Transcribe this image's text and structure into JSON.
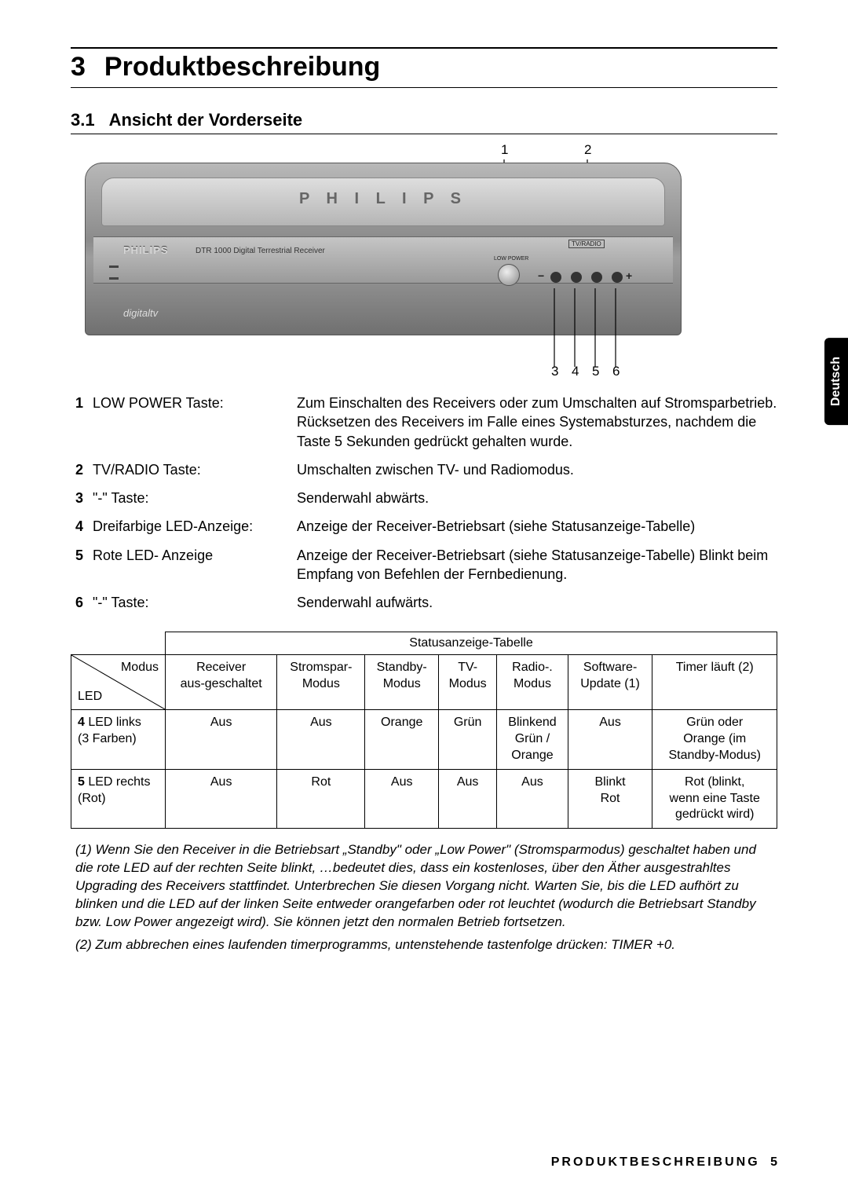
{
  "chapter": {
    "num": "3",
    "title": "Produktbeschreibung"
  },
  "section": {
    "num": "3.1",
    "title": "Ansicht der Vorderseite"
  },
  "side_tab": "Deutsch",
  "figure": {
    "brand_top": "P H I L I P S",
    "brand_small": "PHILIPS",
    "model_text": "DTR 1000  Digital Terrestrial Receiver",
    "tvradio": "TV/RADIO",
    "power_label": "LOW POWER",
    "minus": "−",
    "plus": "+",
    "digitv": "digitaltv",
    "top_callouts": {
      "c1": "1",
      "c2": "2"
    },
    "bottom_callouts": {
      "c3": "3",
      "c4": "4",
      "c5": "5",
      "c6": "6"
    }
  },
  "items": [
    {
      "num": "1",
      "label": "LOW POWER Taste:",
      "desc": "Zum Einschalten des Receivers oder zum Umschalten auf Stromsparbetrieb.\nRücksetzen des Receivers im Falle eines Systemabsturzes, nachdem die Taste 5 Sekunden gedrückt gehalten wurde."
    },
    {
      "num": "2",
      "label": "TV/RADIO Taste:",
      "desc": "Umschalten zwischen TV- und Radiomodus."
    },
    {
      "num": "3",
      "label": "\"-\" Taste:",
      "desc": "Senderwahl abwärts."
    },
    {
      "num": "4",
      "label": "Dreifarbige LED-Anzeige:",
      "desc": "Anzeige der Receiver-Betriebsart (siehe Statusanzeige-Tabelle)"
    },
    {
      "num": "5",
      "label": "Rote LED- Anzeige",
      "desc": "Anzeige der Receiver-Betriebsart (siehe Statusanzeige-Tabelle) Blinkt beim Empfang von Befehlen der Fernbedienung."
    },
    {
      "num": "6",
      "label": "\"-\" Taste:",
      "desc": "Senderwahl aufwärts."
    }
  ],
  "table": {
    "title": "Statusanzeige-Tabelle",
    "diag_modus": "Modus",
    "diag_led": "LED",
    "headers": [
      "Receiver aus-geschaltet",
      "Stromspar-Modus",
      "Standby-Modus",
      "TV-Modus",
      "Radio-.Modus",
      "Software-Update (1)",
      "Timer läuft (2)"
    ],
    "rows": [
      {
        "num": "4",
        "label": "LED links (3 Farben)",
        "cells": [
          "Aus",
          "Aus",
          "Orange",
          "Grün",
          "Blinkend Grün / Orange",
          "Aus",
          "Grün oder Orange (im Standby-Modus)"
        ]
      },
      {
        "num": "5",
        "label": "LED rechts (Rot)",
        "cells": [
          "Aus",
          "Rot",
          "Aus",
          "Aus",
          "Aus",
          "Blinkt Rot",
          "Rot (blinkt, wenn eine Taste gedrückt wird)"
        ]
      }
    ]
  },
  "footnotes": [
    "(1) Wenn Sie den Receiver in die Betriebsart „Standby\" oder „Low Power\" (Stromsparmodus) geschaltet haben und die rote LED auf der rechten Seite blinkt, …bedeutet dies, dass ein kostenloses, über den Äther ausgestrahltes Upgrading des Receivers stattfindet. Unterbrechen Sie diesen Vorgang nicht. Warten Sie, bis die LED aufhört zu blinken und die LED auf der linken Seite entweder orangefarben oder rot leuchtet (wodurch die Betriebsart Standby bzw. Low Power angezeigt wird). Sie können jetzt den normalen Betrieb fortsetzen.",
    "(2) Zum abbrechen eines laufenden timerprogramms, untenstehende tastenfolge drücken: TIMER +0."
  ],
  "footer": {
    "label": "PRODUKTBESCHREIBUNG",
    "page": "5"
  }
}
